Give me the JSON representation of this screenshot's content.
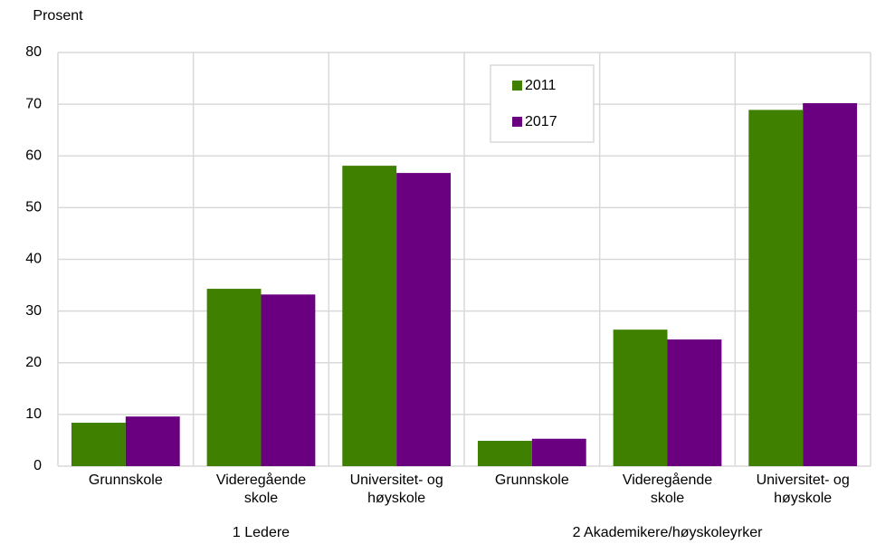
{
  "chart_data": {
    "type": "bar",
    "y_label": "Prosent",
    "groups": [
      {
        "name": "1 Ledere",
        "categories": [
          [
            "Grunnskole"
          ],
          [
            "Videregående",
            "skole"
          ],
          [
            "Universitet- og",
            "høyskole"
          ]
        ]
      },
      {
        "name": "2 Akademikere/høyskoleyrker",
        "categories": [
          [
            "Grunnskole"
          ],
          [
            "Videregående",
            "skole"
          ],
          [
            "Universitet- og",
            "høyskole"
          ]
        ]
      }
    ],
    "series": [
      {
        "name": "2011",
        "color": "#3f8000",
        "values": [
          8.4,
          34.3,
          58.1,
          4.9,
          26.4,
          68.9
        ]
      },
      {
        "name": "2017",
        "color": "#6a0080",
        "values": [
          9.6,
          33.2,
          56.7,
          5.3,
          24.5,
          70.2
        ]
      }
    ],
    "ylim": [
      0,
      80
    ],
    "yticks": [
      0,
      10,
      20,
      30,
      40,
      50,
      60,
      70,
      80
    ],
    "grid": true,
    "legend": "upper center"
  }
}
